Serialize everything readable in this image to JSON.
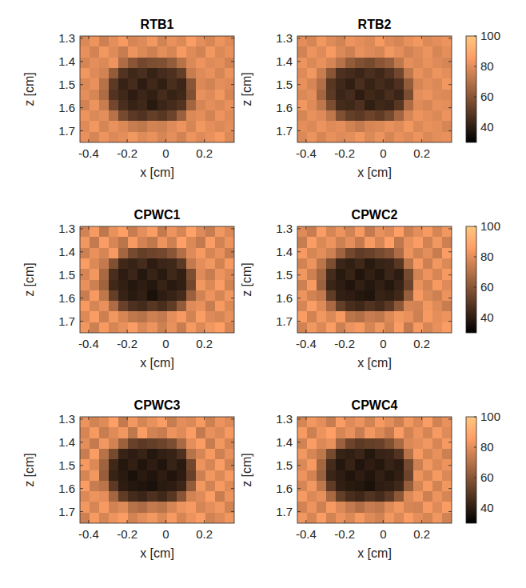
{
  "chart_data": [
    {
      "type": "heatmap",
      "title": "RTB1",
      "x_label": "x [cm]",
      "y_label": "z [cm]",
      "xlim": [
        -0.445,
        0.355
      ],
      "ylim": [
        1.29,
        1.75
      ],
      "xticks": [
        -0.4,
        -0.2,
        0,
        0.2
      ],
      "yticks": [
        1.3,
        1.4,
        1.5,
        1.6,
        1.7
      ],
      "clim": [
        30,
        100
      ],
      "cells": [
        [
          78,
          82,
          75,
          80,
          84,
          77,
          79,
          83,
          76,
          81,
          78,
          85,
          80,
          77,
          82,
          79
        ],
        [
          81,
          76,
          83,
          79,
          74,
          82,
          78,
          75,
          80,
          77,
          84,
          79,
          76,
          83,
          78,
          81
        ],
        [
          77,
          80,
          78,
          82,
          68,
          60,
          55,
          57,
          58,
          62,
          70,
          78,
          82,
          79,
          80,
          76
        ],
        [
          83,
          79,
          76,
          62,
          48,
          44,
          46,
          42,
          45,
          47,
          52,
          74,
          79,
          81,
          77,
          82
        ],
        [
          78,
          81,
          70,
          50,
          42,
          45,
          40,
          44,
          41,
          46,
          43,
          60,
          78,
          76,
          80,
          79
        ],
        [
          80,
          77,
          68,
          48,
          44,
          40,
          43,
          41,
          45,
          42,
          44,
          58,
          81,
          79,
          83,
          77
        ],
        [
          76,
          82,
          74,
          55,
          46,
          42,
          44,
          39,
          43,
          45,
          48,
          66,
          77,
          80,
          78,
          81
        ],
        [
          82,
          78,
          80,
          70,
          56,
          50,
          48,
          52,
          49,
          54,
          64,
          78,
          80,
          76,
          82,
          79
        ],
        [
          79,
          83,
          77,
          81,
          78,
          74,
          72,
          76,
          75,
          79,
          82,
          77,
          83,
          80,
          78,
          80
        ],
        [
          81,
          77,
          82,
          78,
          80,
          83,
          79,
          81,
          77,
          80,
          76,
          82,
          79,
          81,
          84,
          78
        ]
      ]
    },
    {
      "type": "heatmap",
      "title": "RTB2",
      "x_label": "x [cm]",
      "y_label": "z [cm]",
      "xlim": [
        -0.445,
        0.355
      ],
      "ylim": [
        1.29,
        1.75
      ],
      "xticks": [
        -0.4,
        -0.2,
        0,
        0.2
      ],
      "yticks": [
        1.3,
        1.4,
        1.5,
        1.6,
        1.7
      ],
      "clim": [
        30,
        100
      ],
      "cticks": [
        40,
        60,
        80,
        100
      ],
      "cells": [
        [
          80,
          77,
          83,
          79,
          76,
          82,
          80,
          78,
          84,
          79,
          77,
          81,
          83,
          78,
          80,
          82
        ],
        [
          76,
          82,
          79,
          84,
          78,
          75,
          81,
          79,
          77,
          83,
          80,
          76,
          79,
          82,
          77,
          80
        ],
        [
          82,
          78,
          81,
          77,
          70,
          62,
          58,
          56,
          60,
          63,
          72,
          80,
          78,
          81,
          79,
          77
        ],
        [
          79,
          83,
          74,
          60,
          47,
          45,
          43,
          46,
          44,
          48,
          55,
          72,
          81,
          78,
          82,
          80
        ],
        [
          81,
          77,
          69,
          49,
          44,
          41,
          46,
          42,
          45,
          43,
          47,
          62,
          77,
          80,
          78,
          83
        ],
        [
          78,
          80,
          66,
          50,
          43,
          45,
          40,
          44,
          42,
          46,
          43,
          57,
          80,
          82,
          79,
          78
        ],
        [
          83,
          79,
          72,
          57,
          45,
          44,
          47,
          41,
          44,
          43,
          49,
          68,
          79,
          77,
          81,
          80
        ],
        [
          77,
          81,
          79,
          72,
          58,
          52,
          50,
          54,
          51,
          56,
          66,
          77,
          82,
          80,
          78,
          82
        ],
        [
          80,
          78,
          82,
          79,
          80,
          76,
          73,
          77,
          78,
          81,
          79,
          83,
          78,
          81,
          80,
          77
        ],
        [
          78,
          82,
          77,
          81,
          79,
          80,
          83,
          78,
          82,
          77,
          81,
          79,
          82,
          78,
          80,
          81
        ]
      ]
    },
    {
      "type": "heatmap",
      "title": "CPWC1",
      "x_label": "x [cm]",
      "y_label": "z [cm]",
      "xlim": [
        -0.445,
        0.355
      ],
      "ylim": [
        1.29,
        1.75
      ],
      "xticks": [
        -0.4,
        -0.2,
        0,
        0.2
      ],
      "yticks": [
        1.3,
        1.4,
        1.5,
        1.6,
        1.7
      ],
      "clim": [
        30,
        100
      ],
      "cells": [
        [
          76,
          84,
          72,
          81,
          86,
          74,
          80,
          85,
          73,
          82,
          77,
          87,
          79,
          74,
          83,
          78
        ],
        [
          83,
          73,
          85,
          77,
          71,
          84,
          76,
          72,
          82,
          75,
          86,
          78,
          73,
          85,
          76,
          82
        ],
        [
          75,
          81,
          77,
          84,
          66,
          56,
          52,
          54,
          55,
          60,
          69,
          79,
          84,
          77,
          81,
          74
        ],
        [
          85,
          78,
          73,
          58,
          44,
          42,
          45,
          40,
          43,
          44,
          50,
          73,
          80,
          83,
          76,
          84
        ],
        [
          77,
          83,
          67,
          46,
          40,
          43,
          38,
          42,
          39,
          44,
          41,
          57,
          79,
          74,
          82,
          78
        ],
        [
          81,
          75,
          65,
          44,
          41,
          38,
          40,
          38,
          42,
          39,
          41,
          55,
          83,
          78,
          85,
          76
        ],
        [
          74,
          84,
          72,
          52,
          42,
          39,
          41,
          36,
          40,
          42,
          45,
          64,
          76,
          82,
          77,
          83
        ],
        [
          84,
          77,
          81,
          68,
          53,
          47,
          45,
          49,
          46,
          51,
          62,
          79,
          81,
          74,
          84,
          78
        ],
        [
          78,
          85,
          75,
          83,
          77,
          72,
          70,
          75,
          73,
          80,
          84,
          76,
          85,
          79,
          77,
          81
        ],
        [
          83,
          75,
          84,
          77,
          81,
          85,
          78,
          82,
          75,
          81,
          74,
          84,
          78,
          83,
          86,
          77
        ]
      ]
    },
    {
      "type": "heatmap",
      "title": "CPWC2",
      "x_label": "x [cm]",
      "y_label": "z [cm]",
      "xlim": [
        -0.445,
        0.355
      ],
      "ylim": [
        1.29,
        1.75
      ],
      "xticks": [
        -0.4,
        -0.2,
        0,
        0.2
      ],
      "yticks": [
        1.3,
        1.4,
        1.5,
        1.6,
        1.7
      ],
      "clim": [
        30,
        100
      ],
      "cticks": [
        40,
        60,
        80,
        100
      ],
      "cells": [
        [
          79,
          74,
          85,
          77,
          82,
          76,
          84,
          73,
          81,
          78,
          86,
          75,
          80,
          84,
          77,
          83
        ],
        [
          74,
          85,
          78,
          82,
          75,
          80,
          73,
          84,
          77,
          86,
          72,
          81,
          85,
          76,
          83,
          75
        ],
        [
          84,
          77,
          80,
          75,
          65,
          55,
          51,
          53,
          56,
          59,
          68,
          82,
          76,
          80,
          74,
          85
        ],
        [
          76,
          82,
          71,
          57,
          43,
          41,
          44,
          39,
          42,
          43,
          49,
          71,
          84,
          75,
          83,
          78
        ],
        [
          83,
          75,
          66,
          45,
          39,
          42,
          37,
          41,
          38,
          43,
          40,
          56,
          76,
          82,
          77,
          84
        ],
        [
          75,
          84,
          64,
          43,
          40,
          37,
          41,
          38,
          41,
          38,
          42,
          54,
          81,
          76,
          84,
          79
        ],
        [
          82,
          76,
          73,
          51,
          41,
          40,
          38,
          37,
          42,
          41,
          44,
          63,
          84,
          78,
          75,
          82
        ],
        [
          77,
          85,
          79,
          67,
          52,
          46,
          44,
          48,
          45,
          50,
          61,
          77,
          76,
          83,
          79,
          74
        ],
        [
          85,
          76,
          83,
          78,
          84,
          71,
          69,
          74,
          72,
          78,
          83,
          81,
          75,
          84,
          80,
          82
        ],
        [
          76,
          83,
          78,
          85,
          75,
          82,
          84,
          77,
          83,
          76,
          85,
          73,
          84,
          77,
          81,
          85
        ]
      ]
    },
    {
      "type": "heatmap",
      "title": "CPWC3",
      "x_label": "x [cm]",
      "y_label": "z [cm]",
      "xlim": [
        -0.445,
        0.355
      ],
      "ylim": [
        1.29,
        1.75
      ],
      "xticks": [
        -0.4,
        -0.2,
        0,
        0.2
      ],
      "yticks": [
        1.3,
        1.4,
        1.5,
        1.6,
        1.7
      ],
      "clim": [
        30,
        100
      ],
      "cells": [
        [
          82,
          76,
          79,
          86,
          73,
          83,
          77,
          81,
          85,
          74,
          80,
          78,
          84,
          75,
          82,
          79
        ],
        [
          77,
          84,
          74,
          79,
          83,
          72,
          85,
          76,
          74,
          82,
          79,
          85,
          73,
          81,
          78,
          84
        ],
        [
          80,
          73,
          83,
          76,
          64,
          53,
          50,
          52,
          54,
          57,
          67,
          80,
          85,
          74,
          83,
          77
        ],
        [
          74,
          85,
          70,
          56,
          42,
          40,
          42,
          38,
          41,
          42,
          47,
          70,
          77,
          84,
          75,
          81
        ],
        [
          84,
          78,
          65,
          44,
          38,
          41,
          37,
          40,
          37,
          42,
          39,
          55,
          82,
          77,
          85,
          76
        ],
        [
          77,
          83,
          63,
          42,
          39,
          36,
          39,
          37,
          40,
          37,
          40,
          53,
          75,
          83,
          78,
          84
        ],
        [
          85,
          74,
          71,
          50,
          40,
          38,
          37,
          36,
          39,
          40,
          43,
          62,
          83,
          76,
          84,
          79
        ],
        [
          78,
          82,
          80,
          66,
          51,
          45,
          43,
          47,
          44,
          49,
          60,
          76,
          79,
          85,
          74,
          82
        ],
        [
          83,
          77,
          84,
          76,
          79,
          70,
          68,
          73,
          71,
          77,
          82,
          84,
          77,
          80,
          83,
          76
        ],
        [
          75,
          84,
          77,
          82,
          85,
          76,
          80,
          83,
          78,
          84,
          77,
          82,
          85,
          76,
          79,
          83
        ]
      ]
    },
    {
      "type": "heatmap",
      "title": "CPWC4",
      "x_label": "x [cm]",
      "y_label": "z [cm]",
      "xlim": [
        -0.445,
        0.355
      ],
      "ylim": [
        1.29,
        1.75
      ],
      "xticks": [
        -0.4,
        -0.2,
        0,
        0.2
      ],
      "yticks": [
        1.3,
        1.4,
        1.5,
        1.6,
        1.7
      ],
      "clim": [
        30,
        100
      ],
      "cticks": [
        40,
        60,
        80,
        100
      ],
      "cells": [
        [
          77,
          83,
          80,
          74,
          85,
          79,
          82,
          76,
          84,
          80,
          75,
          83,
          78,
          85,
          76,
          81
        ],
        [
          84,
          75,
          82,
          86,
          77,
          81,
          74,
          83,
          78,
          73,
          85,
          76,
          82,
          77,
          84,
          79
        ],
        [
          76,
          85,
          78,
          81,
          64,
          54,
          50,
          52,
          53,
          58,
          67,
          78,
          80,
          83,
          77,
          84
        ],
        [
          83,
          77,
          72,
          56,
          42,
          41,
          43,
          38,
          42,
          43,
          48,
          70,
          84,
          77,
          81,
          75
        ],
        [
          78,
          84,
          66,
          45,
          38,
          42,
          37,
          40,
          38,
          42,
          40,
          56,
          75,
          83,
          78,
          82
        ],
        [
          82,
          76,
          64,
          43,
          40,
          37,
          40,
          37,
          41,
          38,
          41,
          54,
          82,
          77,
          84,
          78
        ],
        [
          77,
          83,
          72,
          51,
          41,
          39,
          38,
          36,
          40,
          41,
          44,
          63,
          77,
          84,
          76,
          83
        ],
        [
          84,
          78,
          81,
          67,
          52,
          46,
          44,
          48,
          45,
          50,
          61,
          78,
          83,
          75,
          82,
          77
        ],
        [
          76,
          82,
          75,
          84,
          78,
          73,
          69,
          74,
          72,
          79,
          83,
          77,
          76,
          84,
          79,
          85
        ],
        [
          83,
          77,
          85,
          76,
          82,
          78,
          84,
          79,
          76,
          83,
          78,
          85,
          80,
          77,
          83,
          76
        ]
      ]
    }
  ]
}
